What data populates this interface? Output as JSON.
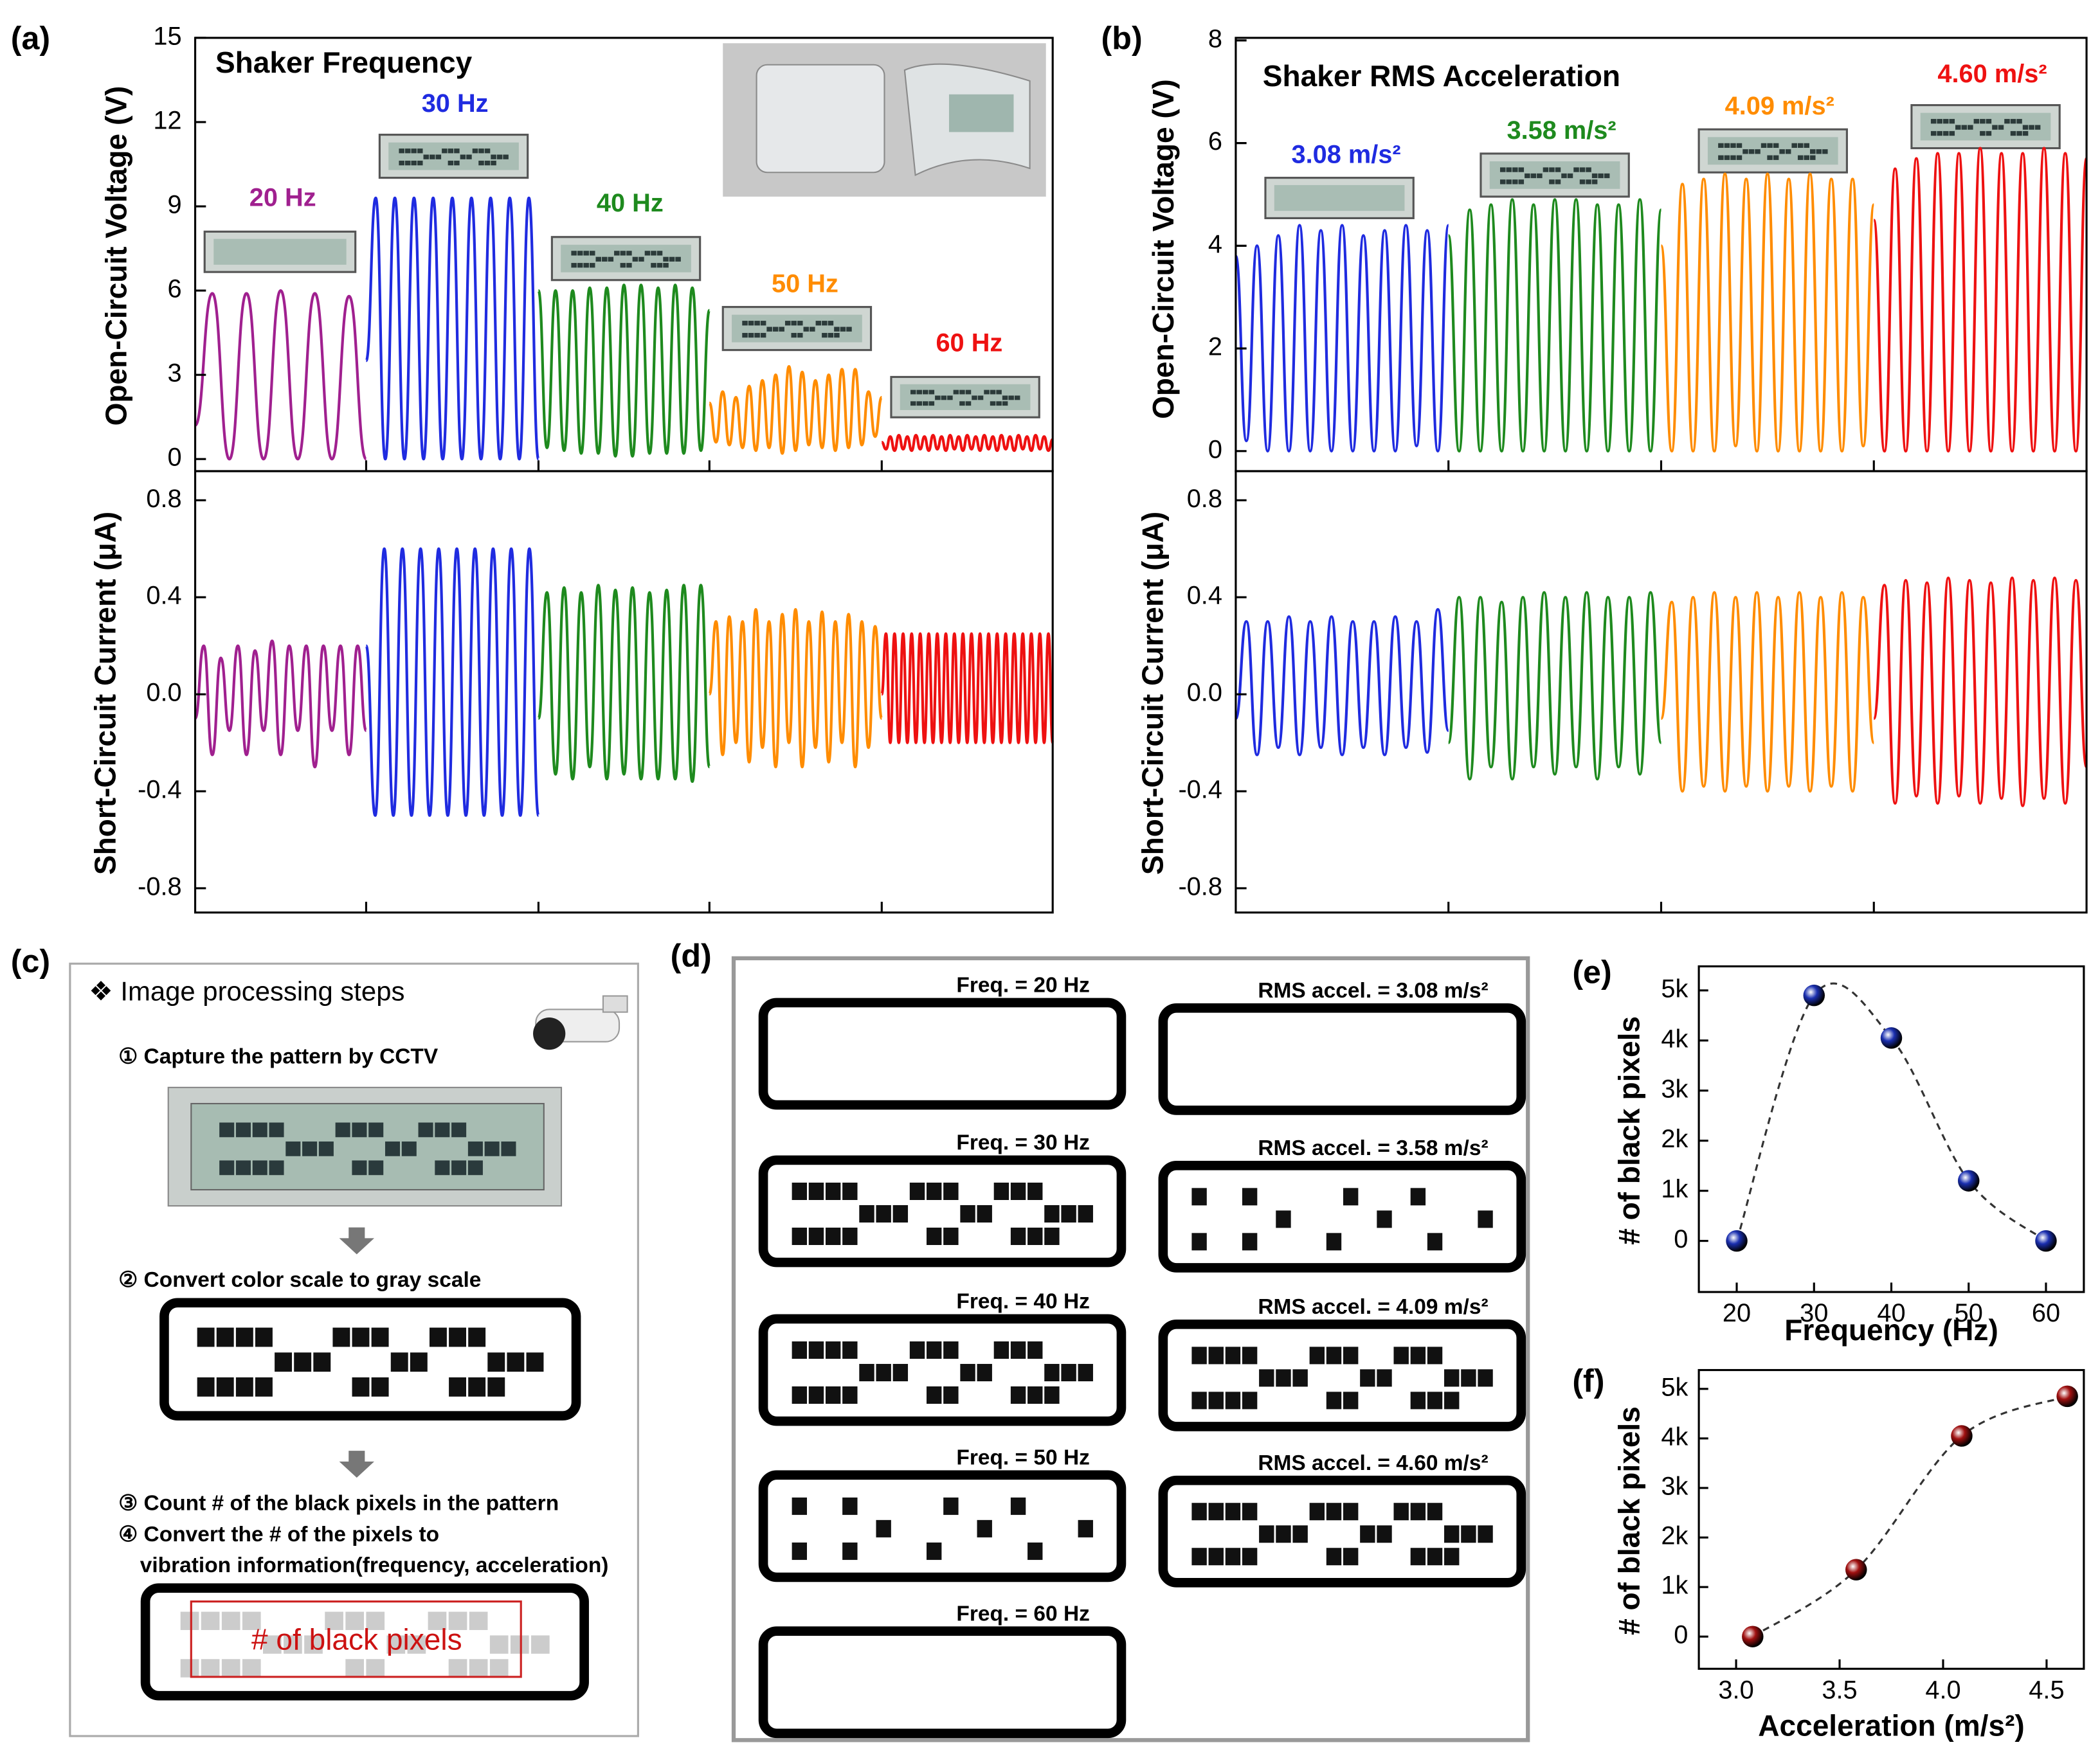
{
  "chart_data": [
    {
      "type": "line",
      "panel": "(a)",
      "title": "Shaker Frequency",
      "ylabel": "Open-Circuit Voltage (V)",
      "ylim": [
        -0.43,
        15
      ],
      "yticks": [
        0,
        3,
        6,
        9,
        12,
        15
      ],
      "series": [
        {
          "name": "20 Hz",
          "color": "#a0208f",
          "values": [
            1.2,
            5.9,
            0,
            5.9,
            0,
            6,
            0,
            5.9,
            0,
            5.8,
            0
          ]
        },
        {
          "name": "30 Hz",
          "color": "#1f2be0",
          "values": [
            3.5,
            9.3,
            0,
            9.3,
            0,
            9.3,
            0,
            9.3,
            0,
            9.3,
            0,
            9.3,
            0,
            9.3,
            0,
            9.3,
            0,
            9.3,
            0
          ]
        },
        {
          "name": "40 Hz",
          "color": "#1e8a1e",
          "values": [
            6,
            0.4,
            6,
            0.3,
            6,
            0.2,
            6.1,
            0.2,
            6.1,
            0.1,
            6.2,
            0.1,
            6.2,
            0.2,
            6.1,
            0.2,
            6.2,
            0.2,
            6.1,
            0.3,
            5.3
          ]
        },
        {
          "name": "50 Hz",
          "color": "#ff8c00",
          "values": [
            2,
            0.6,
            2.4,
            0.5,
            2.2,
            0.4,
            2.6,
            0.3,
            2.8,
            0.4,
            3,
            0.2,
            3.3,
            0.3,
            3.1,
            0.5,
            2.8,
            0.4,
            3,
            0.3,
            3.2,
            0.4,
            3.2,
            0.5,
            2.4,
            0.8,
            2.2
          ]
        },
        {
          "name": "60 Hz",
          "color": "#ee1111",
          "values": [
            0.6,
            0.35,
            0.8,
            0.3,
            0.85,
            0.35,
            0.8,
            0.3,
            0.85,
            0.35,
            0.8,
            0.3,
            0.85,
            0.35,
            0.8,
            0.3,
            0.85,
            0.35,
            0.8,
            0.3,
            0.85,
            0.35,
            0.8,
            0.3,
            0.85,
            0.35,
            0.8,
            0.3,
            0.85,
            0.35,
            0.8,
            0.3,
            0.85,
            0.35,
            0.8,
            0.3,
            0.85,
            0.35,
            0.8,
            0.3,
            0.7
          ]
        }
      ]
    },
    {
      "type": "line",
      "ylabel": "Short-Circuit Current (μA)",
      "ylim": [
        -0.9,
        0.92
      ],
      "yticks": [
        0.8,
        0.4,
        {
          "value": 0,
          "label": "0.0"
        },
        -0.4,
        -0.8
      ],
      "series": [
        {
          "color": "#a0208f",
          "values": [
            -0.1,
            0.2,
            -0.25,
            0.15,
            -0.15,
            0.2,
            -0.25,
            0.18,
            -0.15,
            0.22,
            -0.25,
            0.2,
            -0.15,
            0.2,
            -0.3,
            0.2,
            -0.15,
            0.2,
            -0.25,
            0.2,
            -0.15
          ]
        },
        {
          "color": "#1f2be0",
          "values": [
            0.2,
            -0.5,
            0.6,
            -0.5,
            0.6,
            -0.5,
            0.6,
            -0.5,
            0.6,
            -0.5,
            0.6,
            -0.5,
            0.6,
            -0.5,
            0.6,
            -0.5,
            0.6,
            -0.5,
            0.6,
            -0.5
          ]
        },
        {
          "color": "#1e8a1e",
          "values": [
            -0.1,
            0.42,
            -0.33,
            0.44,
            -0.35,
            0.42,
            -0.3,
            0.45,
            -0.35,
            0.43,
            -0.33,
            0.44,
            -0.35,
            0.42,
            -0.35,
            0.43,
            -0.35,
            0.45,
            -0.36,
            0.45,
            -0.3
          ]
        },
        {
          "color": "#ff8c00",
          "values": [
            0,
            0.3,
            -0.25,
            0.32,
            -0.2,
            0.3,
            -0.28,
            0.35,
            -0.22,
            0.3,
            -0.3,
            0.33,
            -0.2,
            0.35,
            -0.3,
            0.3,
            -0.22,
            0.34,
            -0.28,
            0.3,
            -0.2,
            0.33,
            -0.3,
            0.3,
            -0.22,
            0.28,
            -0.1
          ]
        },
        {
          "color": "#ee1111",
          "values": [
            0,
            0.25,
            -0.2,
            0.25,
            -0.2,
            0.25,
            -0.2,
            0.25,
            -0.2,
            0.25,
            -0.2,
            0.25,
            -0.2,
            0.25,
            -0.2,
            0.25,
            -0.2,
            0.25,
            -0.2,
            0.25,
            -0.2,
            0.25,
            -0.2,
            0.25,
            -0.2,
            0.25,
            -0.2,
            0.25,
            -0.2,
            0.25,
            -0.2,
            0.25,
            -0.2,
            0.25,
            -0.2,
            0.25,
            -0.2,
            0.25,
            -0.2,
            0.25,
            -0.2
          ]
        }
      ]
    },
    {
      "type": "line",
      "panel": "(b)",
      "title": "Shaker RMS Acceleration",
      "ylabel": "Open-Circuit Voltage (V)",
      "ylim": [
        -0.39,
        8.05
      ],
      "yticks": [
        0,
        2,
        4,
        6,
        8
      ],
      "series": [
        {
          "name": "3.08 m/s²",
          "color": "#1f2be0",
          "values": [
            3.8,
            0.2,
            4,
            0,
            4.2,
            0,
            4.4,
            0,
            4.3,
            0,
            4.4,
            0,
            4.2,
            0,
            4.3,
            0,
            4.4,
            0.1,
            4.3,
            0,
            4.4
          ]
        },
        {
          "name": "3.58 m/s²",
          "color": "#1e8a1e",
          "values": [
            4.2,
            0,
            4.7,
            0,
            4.8,
            0,
            4.9,
            0,
            4.8,
            0,
            4.9,
            0,
            4.9,
            0,
            4.8,
            0,
            4.8,
            0,
            4.9,
            0,
            4.7
          ]
        },
        {
          "name": "4.09 m/s²",
          "color": "#ff8c00",
          "values": [
            4,
            0,
            5.2,
            0,
            5.3,
            0,
            5.4,
            0.1,
            5.3,
            0,
            5.4,
            0,
            5.3,
            0,
            5.4,
            0,
            5.3,
            0,
            5.3,
            0.1,
            4.8
          ]
        },
        {
          "name": "4.60 m/s²",
          "color": "#ee1111",
          "values": [
            4.5,
            0,
            5.5,
            0,
            5.7,
            0,
            5.8,
            0,
            5.8,
            0,
            5.9,
            0,
            5.8,
            0,
            5.8,
            0,
            5.9,
            0,
            5.8,
            0,
            5.7
          ]
        }
      ]
    },
    {
      "type": "line",
      "ylabel": "Short-Circuit Current (μA)",
      "ylim": [
        -0.9,
        0.92
      ],
      "yticks": [
        0.8,
        0.4,
        {
          "value": 0,
          "label": "0.0"
        },
        -0.4,
        -0.8
      ],
      "series": [
        {
          "color": "#1f2be0",
          "values": [
            -0.1,
            0.3,
            -0.25,
            0.3,
            -0.22,
            0.32,
            -0.25,
            0.3,
            -0.22,
            0.32,
            -0.25,
            0.3,
            -0.22,
            0.3,
            -0.25,
            0.32,
            -0.22,
            0.3,
            -0.24,
            0.35,
            -0.15
          ]
        },
        {
          "color": "#1e8a1e",
          "values": [
            -0.2,
            0.4,
            -0.35,
            0.4,
            -0.3,
            0.38,
            -0.35,
            0.4,
            -0.3,
            0.42,
            -0.33,
            0.4,
            -0.3,
            0.42,
            -0.35,
            0.4,
            -0.3,
            0.4,
            -0.33,
            0.42,
            -0.2
          ]
        },
        {
          "color": "#ff8c00",
          "values": [
            -0.1,
            0.38,
            -0.4,
            0.4,
            -0.38,
            0.42,
            -0.4,
            0.4,
            -0.38,
            0.42,
            -0.4,
            0.4,
            -0.38,
            0.42,
            -0.4,
            0.4,
            -0.38,
            0.42,
            -0.4,
            0.4,
            -0.2
          ]
        },
        {
          "color": "#ee1111",
          "values": [
            -0.1,
            0.45,
            -0.45,
            0.47,
            -0.42,
            0.46,
            -0.45,
            0.48,
            -0.42,
            0.47,
            -0.45,
            0.46,
            -0.43,
            0.48,
            -0.46,
            0.47,
            -0.43,
            0.48,
            -0.45,
            0.47,
            -0.3
          ]
        }
      ]
    },
    {
      "type": "scatter",
      "panel": "(e)",
      "xlabel": "Frequency (Hz)",
      "ylabel": "# of black pixels",
      "color": "#1a2fb0",
      "x": [
        20,
        30,
        40,
        50,
        60
      ],
      "values": [
        0,
        4900,
        4050,
        1200,
        0
      ],
      "xlim": [
        15.1,
        64.9
      ],
      "xticks": [
        20,
        30,
        40,
        50,
        60
      ],
      "ylim": [
        -1020,
        5480
      ],
      "yticks": [
        0,
        {
          "value": 1000,
          "label": "1k"
        },
        {
          "value": 2000,
          "label": "2k"
        },
        {
          "value": 3000,
          "label": "3k"
        },
        {
          "value": 4000,
          "label": "4k"
        },
        {
          "value": 5000,
          "label": "5k"
        }
      ]
    },
    {
      "type": "scatter",
      "panel": "(f)",
      "xlabel": "Acceleration (m/s²)",
      "ylabel": "# of black pixels",
      "color": "#a01010",
      "x": [
        3.08,
        3.58,
        4.09,
        4.6
      ],
      "values": [
        0,
        1350,
        4050,
        4850
      ],
      "xlim": [
        2.82,
        4.68
      ],
      "xticks": [
        {
          "value": 3,
          "label": "3.0"
        },
        3.5,
        {
          "value": 4,
          "label": "4.0"
        },
        4.5
      ],
      "ylim": [
        -650,
        5380
      ],
      "yticks": [
        0,
        {
          "value": 1000,
          "label": "1k"
        },
        {
          "value": 2000,
          "label": "2k"
        },
        {
          "value": 3000,
          "label": "3k"
        },
        {
          "value": 4000,
          "label": "4k"
        },
        {
          "value": 5000,
          "label": "5k"
        }
      ]
    }
  ],
  "diagrams": {
    "c": {
      "panel": "(c)",
      "heading": "❖  Image processing steps",
      "steps": [
        "① Capture the pattern by CCTV",
        "② Convert color scale to gray scale",
        "③ Count # of the black pixels in the pattern",
        "④ Convert the # of the pixels to",
        "vibration information(frequency,  acceleration)"
      ],
      "overlay": "# of black pixels"
    },
    "d": {
      "panel": "(d)",
      "freq": [
        "Freq. = 20 Hz",
        "Freq. = 30 Hz",
        "Freq. = 40 Hz",
        "Freq. = 50 Hz",
        "Freq. = 60 Hz"
      ],
      "accel": [
        "RMS accel. = 3.08 m/s²",
        "RMS accel. = 3.58 m/s²",
        "RMS accel. = 4.09 m/s²",
        "RMS accel. = 4.60 m/s²"
      ]
    }
  }
}
